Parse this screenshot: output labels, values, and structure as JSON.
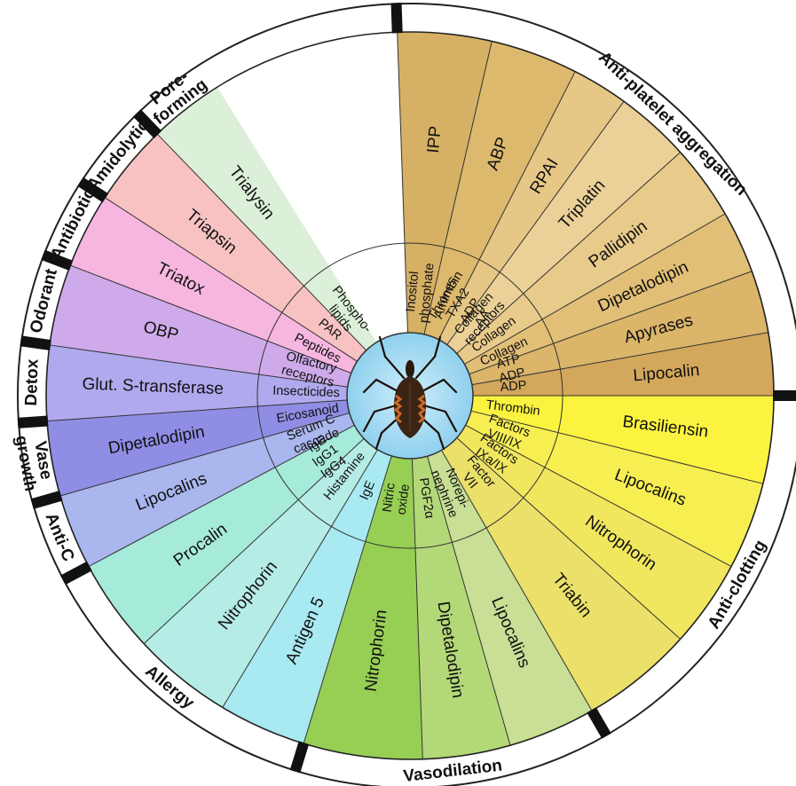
{
  "diagram": {
    "categories": [
      {
        "label": "Anti-platelet aggregation",
        "start": -2,
        "end": 90
      },
      {
        "label": "Anti-clotting",
        "start": 90,
        "end": 150
      },
      {
        "label": "Vasodilation",
        "start": 150,
        "end": 197
      },
      {
        "label": "Allergy",
        "start": 197,
        "end": 242
      },
      {
        "label": "Anti-C",
        "start": 242,
        "end": 254
      },
      {
        "label": "Vase\ngrowth",
        "start": 254,
        "end": 266
      },
      {
        "label": "Detox",
        "start": 266,
        "end": 278
      },
      {
        "label": "Odorant",
        "start": 278,
        "end": 291
      },
      {
        "label": "Antibiotic",
        "start": 291,
        "end": 303
      },
      {
        "label": "Amidolytic",
        "start": 303,
        "end": 316
      },
      {
        "label": "Pore-\nforming",
        "start": 316,
        "end": 328
      }
    ],
    "sectors": [
      {
        "protein": "IPP",
        "target": "Inositol\nphosphate",
        "start": -2,
        "end": 13,
        "color": "#d6b064"
      },
      {
        "protein": "ABP",
        "target": "Amines",
        "start": 13,
        "end": 27,
        "color": "#ddb96e"
      },
      {
        "protein": "RPAI",
        "target": "Thrombin\nTXA2\nADP\nAA",
        "start": 27,
        "end": 36,
        "color": "#e6c785"
      },
      {
        "protein": "Triplatin",
        "target": "Collagen\nreceptors",
        "start": 36,
        "end": 48,
        "color": "#ebd197"
      },
      {
        "protein": "Pallidipin",
        "target": "Collagen",
        "start": 48,
        "end": 60,
        "color": "#e8cb8a"
      },
      {
        "protein": "Dipetalodipin",
        "target": "Collagen",
        "start": 60,
        "end": 70,
        "color": "#e2bf77"
      },
      {
        "protein": "Apyrases",
        "target": "ATP\nADP",
        "start": 70,
        "end": 80,
        "color": "#dab56a"
      },
      {
        "protein": "Lipocalin",
        "target": "ADP",
        "start": 80,
        "end": 90,
        "color": "#d3a75c"
      },
      {
        "protein": "Brasiliensin",
        "target": "Thrombin",
        "start": 90,
        "end": 104,
        "color": "#fbf33f"
      },
      {
        "protein": "Lipocalins",
        "target": "Factors\nVIII/IX",
        "start": 104,
        "end": 118,
        "color": "#f7ef52"
      },
      {
        "protein": "Nitrophorin",
        "target": "Factors\nIXa/IX",
        "start": 118,
        "end": 132,
        "color": "#f1e75e"
      },
      {
        "protein": "Triabin",
        "target": "Factor\nVII",
        "start": 132,
        "end": 150,
        "color": "#ebe06a"
      },
      {
        "protein": "Lipocalins",
        "target": "Norepi-\nnephrine",
        "start": 150,
        "end": 164,
        "color": "#c8df95"
      },
      {
        "protein": "Dipetalodipin",
        "target": "PGF2α",
        "start": 164,
        "end": 178,
        "color": "#b3d878"
      },
      {
        "protein": "Nitrophorin",
        "target": "Nitric\noxide",
        "start": 178,
        "end": 197,
        "color": "#97cf55"
      },
      {
        "protein": "Antigen 5",
        "target": "IgE",
        "start": 197,
        "end": 211,
        "color": "#a9e9f1"
      },
      {
        "protein": "Nitrophorin",
        "target": "Histamine",
        "start": 211,
        "end": 227,
        "color": "#b6ece6"
      },
      {
        "protein": "Procalin",
        "target": "IgE\nIgG1\nIgG4",
        "start": 227,
        "end": 242,
        "color": "#a6ead9"
      },
      {
        "protein": "Lipocalins",
        "target": "Serum C\ncascade",
        "start": 242,
        "end": 254,
        "color": "#aab6ee"
      },
      {
        "protein": "Dipetalodipin",
        "target": "Eicosanoid",
        "start": 254,
        "end": 266,
        "color": "#8f8de4"
      },
      {
        "protein": "Glut. S-transferase",
        "target": "Insecticides",
        "start": 266,
        "end": 278,
        "color": "#b1a9ee"
      },
      {
        "protein": "OBP",
        "target": "Olfactory\nreceptors",
        "start": 278,
        "end": 291,
        "color": "#cfaaea"
      },
      {
        "protein": "Triatox",
        "target": "Peptides",
        "start": 291,
        "end": 303,
        "color": "#f7b6e0"
      },
      {
        "protein": "Triapsin",
        "target": "PAR",
        "start": 303,
        "end": 316,
        "color": "#f8c2c2"
      },
      {
        "protein": "Trialysin",
        "target": "Phospho-\nlipids",
        "start": 316,
        "end": 328,
        "color": "#dcefd8"
      }
    ],
    "center_icon": "kissing-bug-icon"
  }
}
